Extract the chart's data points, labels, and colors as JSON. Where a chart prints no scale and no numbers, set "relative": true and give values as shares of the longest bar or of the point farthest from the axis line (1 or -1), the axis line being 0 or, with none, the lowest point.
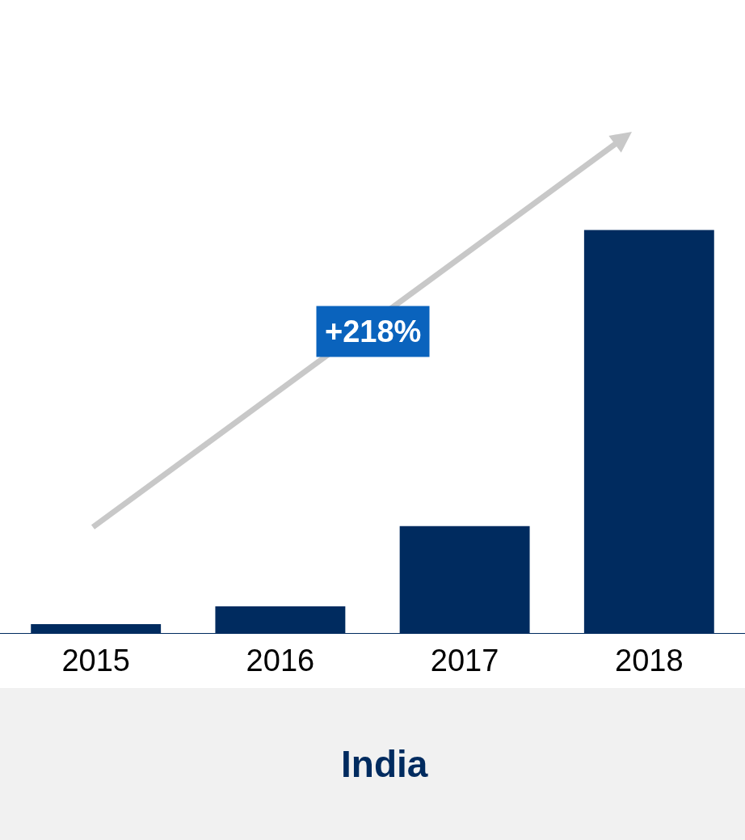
{
  "chart_data": {
    "type": "bar",
    "title": "India",
    "categories": [
      "2015",
      "2016",
      "2017",
      "2018"
    ],
    "values": [
      0.022,
      0.066,
      0.265,
      1.0
    ],
    "color": "#002b5f",
    "relative": true,
    "legend": false,
    "annotations": [
      "+218%"
    ]
  }
}
